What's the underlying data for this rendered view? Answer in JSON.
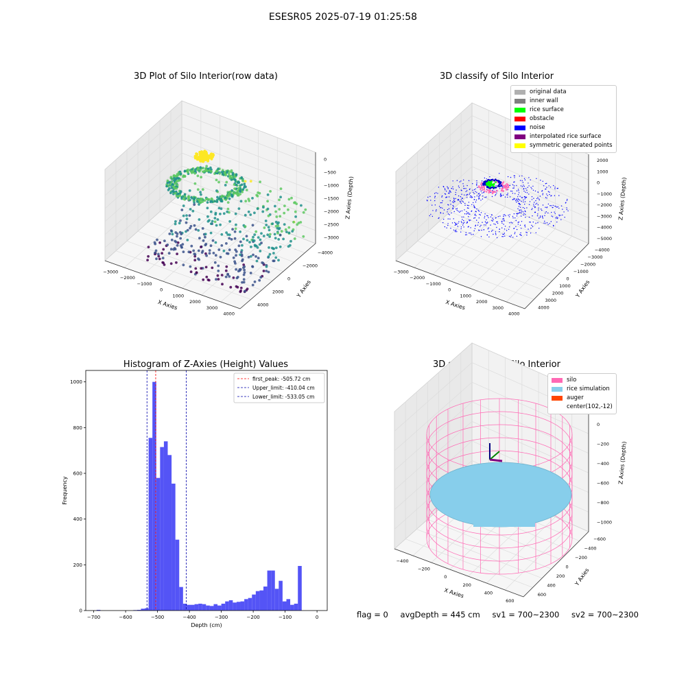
{
  "suptitle": "ESESR05 2025-07-19 01:25:58",
  "panels": {
    "raw": {
      "title": "3D Plot of Silo Interior(row data)",
      "xlabel": "X Axies",
      "ylabel": "Y Axies",
      "zlabel": "Z Axies (Depth)",
      "xticks": [
        "−3000",
        "−2000",
        "−1000",
        "0",
        "1000",
        "2000",
        "3000",
        "4000"
      ],
      "yticks": [
        "−4000",
        "−2000",
        "0",
        "2000",
        "4000"
      ],
      "zticks": [
        "0",
        "−500",
        "−1000",
        "−1500",
        "−2000",
        "−2500",
        "−3000"
      ]
    },
    "classify": {
      "title": "3D classify of Silo Interior",
      "xlabel": "X Axies",
      "ylabel": "Y Axies",
      "zlabel": "Z Axies (Depth)",
      "xticks": [
        "−3000",
        "−2000",
        "−1000",
        "0",
        "1000",
        "2000",
        "3000",
        "4000"
      ],
      "yticks": [
        "−4000",
        "−3000",
        "−2000",
        "−1000",
        "0",
        "1000",
        "2000",
        "3000",
        "4000"
      ],
      "zticks": [
        "2000",
        "1000",
        "0",
        "−1000",
        "−2000",
        "−3000",
        "−4000",
        "−5000"
      ],
      "legend": [
        {
          "label": "original data",
          "color": "#b0b0b0"
        },
        {
          "label": "inner wall",
          "color": "#808080"
        },
        {
          "label": "rice surface",
          "color": "#00ff00"
        },
        {
          "label": "obstacle",
          "color": "#ff0000"
        },
        {
          "label": "noise",
          "color": "#0000ff"
        },
        {
          "label": "interpolated rice surface",
          "color": "#800080"
        },
        {
          "label": "symmetric generated points",
          "color": "#ffff00"
        }
      ]
    },
    "histogram": {
      "title": "Histogram of Z-Axies (Height) Values",
      "xlabel": "Depth (cm)",
      "ylabel": "Frequency",
      "legend": [
        {
          "label": "first_peak: -505.72 cm",
          "color": "#ff0000"
        },
        {
          "label": "Upper_limit: -410.04 cm",
          "color": "#0000aa"
        },
        {
          "label": "Lower_limit: -533.05 cm",
          "color": "#0000aa"
        }
      ]
    },
    "simulation": {
      "title": "3D simulation of Silo Interior",
      "xlabel": "X Axies",
      "ylabel": "Y Axies",
      "zlabel": "Z Axies (Depth)",
      "xticks": [
        "−400",
        "−200",
        "0",
        "200",
        "400",
        "600"
      ],
      "yticks": [
        "−600",
        "−400",
        "−200",
        "0",
        "200",
        "400",
        "600"
      ],
      "zticks": [
        "200",
        "0",
        "−200",
        "−400",
        "−600",
        "−800",
        "−1000"
      ],
      "legend": [
        {
          "label": "silo",
          "color": "#ff69b4"
        },
        {
          "label": "rice simulation",
          "color": "#87ceeb"
        },
        {
          "label": "auger",
          "color": "#ff4500"
        },
        {
          "label": "center(102,-12)",
          "color": ""
        }
      ]
    }
  },
  "footer": {
    "flag": "flag = 0",
    "avg": "avgDepth = 445 cm",
    "sv1": "sv1 = 700~2300",
    "sv2": "sv2 = 700~2300"
  },
  "chart_data": [
    {
      "type": "bar",
      "title": "Histogram of Z-Axies (Height) Values",
      "xlabel": "Depth (cm)",
      "ylabel": "Frequency",
      "xlim": [
        -725,
        32
      ],
      "ylim": [
        0,
        1050
      ],
      "xticks": [
        -700,
        -600,
        -500,
        -400,
        -300,
        -200,
        -100,
        0
      ],
      "yticks": [
        0,
        200,
        400,
        600,
        800,
        1000
      ],
      "bin_width": 12,
      "bins": [
        {
          "x": -685,
          "v": 3
        },
        {
          "x": -570,
          "v": 2
        },
        {
          "x": -558,
          "v": 3
        },
        {
          "x": -546,
          "v": 8
        },
        {
          "x": -534,
          "v": 10
        },
        {
          "x": -522,
          "v": 755
        },
        {
          "x": -510,
          "v": 1000
        },
        {
          "x": -498,
          "v": 580
        },
        {
          "x": -486,
          "v": 715
        },
        {
          "x": -474,
          "v": 740
        },
        {
          "x": -462,
          "v": 680
        },
        {
          "x": -450,
          "v": 555
        },
        {
          "x": -438,
          "v": 310
        },
        {
          "x": -426,
          "v": 103
        },
        {
          "x": -414,
          "v": 30
        },
        {
          "x": -402,
          "v": 25
        },
        {
          "x": -390,
          "v": 25
        },
        {
          "x": -378,
          "v": 28
        },
        {
          "x": -366,
          "v": 30
        },
        {
          "x": -354,
          "v": 28
        },
        {
          "x": -342,
          "v": 22
        },
        {
          "x": -330,
          "v": 20
        },
        {
          "x": -318,
          "v": 28
        },
        {
          "x": -306,
          "v": 22
        },
        {
          "x": -294,
          "v": 30
        },
        {
          "x": -282,
          "v": 40
        },
        {
          "x": -270,
          "v": 45
        },
        {
          "x": -258,
          "v": 35
        },
        {
          "x": -246,
          "v": 38
        },
        {
          "x": -234,
          "v": 40
        },
        {
          "x": -222,
          "v": 50
        },
        {
          "x": -210,
          "v": 55
        },
        {
          "x": -198,
          "v": 70
        },
        {
          "x": -186,
          "v": 85
        },
        {
          "x": -174,
          "v": 88
        },
        {
          "x": -162,
          "v": 105
        },
        {
          "x": -150,
          "v": 175
        },
        {
          "x": -138,
          "v": 175
        },
        {
          "x": -126,
          "v": 95
        },
        {
          "x": -114,
          "v": 130
        },
        {
          "x": -102,
          "v": 40
        },
        {
          "x": -90,
          "v": 50
        },
        {
          "x": -78,
          "v": 25
        },
        {
          "x": -66,
          "v": 30
        },
        {
          "x": -54,
          "v": 195
        }
      ],
      "vlines": [
        {
          "name": "first_peak",
          "x": -505.72,
          "color": "#ff0000"
        },
        {
          "name": "Upper_limit",
          "x": -410.04,
          "color": "#0000aa"
        },
        {
          "name": "Lower_limit",
          "x": -533.05,
          "color": "#0000aa"
        }
      ],
      "legend_position": "top-right",
      "bar_color": "#4b4bf5"
    }
  ]
}
